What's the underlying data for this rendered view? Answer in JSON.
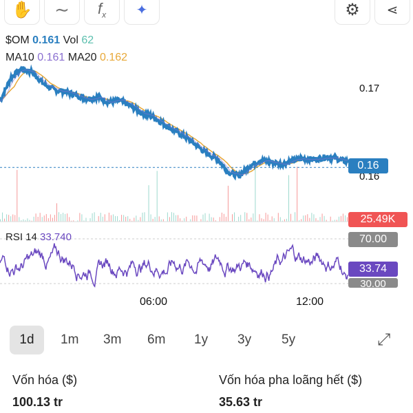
{
  "toolbar": {
    "tools": [
      "hand-icon",
      "line-icon",
      "function-icon",
      "ai-sparkle-icon"
    ],
    "right": [
      "gear-icon",
      "share-icon"
    ]
  },
  "legend": {
    "symbol": "$OM",
    "price": "0.161",
    "vol_label": "Vol",
    "vol": "62",
    "ma10_label": "MA10",
    "ma10": "0.161",
    "ma20_label": "MA20",
    "ma20": "0.162"
  },
  "colors": {
    "price": "#2a7fc0",
    "ma10": "#8a6fd0",
    "ma20": "#e8a838",
    "vol": "#5bbfae",
    "down": "#f05454",
    "rsi": "#6a48c0"
  },
  "axis": {
    "p017": "0.17",
    "p016": "0.16",
    "current_price": "0.16",
    "volume": "25.49K",
    "rsi70": "70.00",
    "rsi_value": "33.74",
    "rsi30": "30.00",
    "x_ticks": [
      "06:00",
      "12:00"
    ]
  },
  "rsi": {
    "label": "RSI 14",
    "value": "33.740"
  },
  "chart_data": {
    "type": "line",
    "price_points": [
      0.1685,
      0.1712,
      0.1722,
      0.1718,
      0.1705,
      0.1698,
      0.1696,
      0.1692,
      0.1688,
      0.169,
      0.1684,
      0.1686,
      0.168,
      0.1672,
      0.1668,
      0.166,
      0.1652,
      0.1645,
      0.1636,
      0.1626,
      0.162,
      0.1605,
      0.16,
      0.1612,
      0.1618,
      0.1616,
      0.1614,
      0.1618,
      0.162,
      0.1619,
      0.1622,
      0.162,
      0.1616
    ],
    "y_ticks": [
      0.16,
      0.17
    ],
    "current": 0.161,
    "rsi_levels": [
      30,
      70
    ],
    "rsi_current": 33.74
  },
  "ranges": [
    "1d",
    "1m",
    "3m",
    "6m",
    "1y",
    "3y",
    "5y"
  ],
  "selected_range": "1d",
  "stats": [
    {
      "label": "Vốn hóa ($)",
      "value": "100.13 tr"
    },
    {
      "label": "Vốn hóa pha loãng hết ($)",
      "value": "35.63 tr"
    }
  ]
}
